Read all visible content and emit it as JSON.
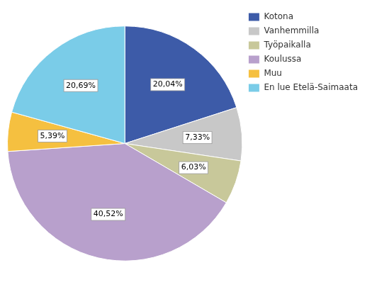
{
  "chart_data": {
    "type": "pie",
    "categories": [
      "Kotona",
      "Vanhemmilla",
      "Työpaikalla",
      "Koulussa",
      "Muu",
      "En lue Etelä-Saimaata"
    ],
    "values": [
      20.04,
      7.33,
      6.03,
      40.52,
      5.39,
      20.69
    ],
    "value_labels": [
      "20,04%",
      "7,33%",
      "6,03%",
      "40,52%",
      "5,39%",
      "20,69%"
    ],
    "colors": [
      "#3d5ba8",
      "#c8c8c8",
      "#c8c89a",
      "#b8a0cc",
      "#f5c040",
      "#7acce8"
    ],
    "data_labels": true,
    "legend": "right"
  }
}
